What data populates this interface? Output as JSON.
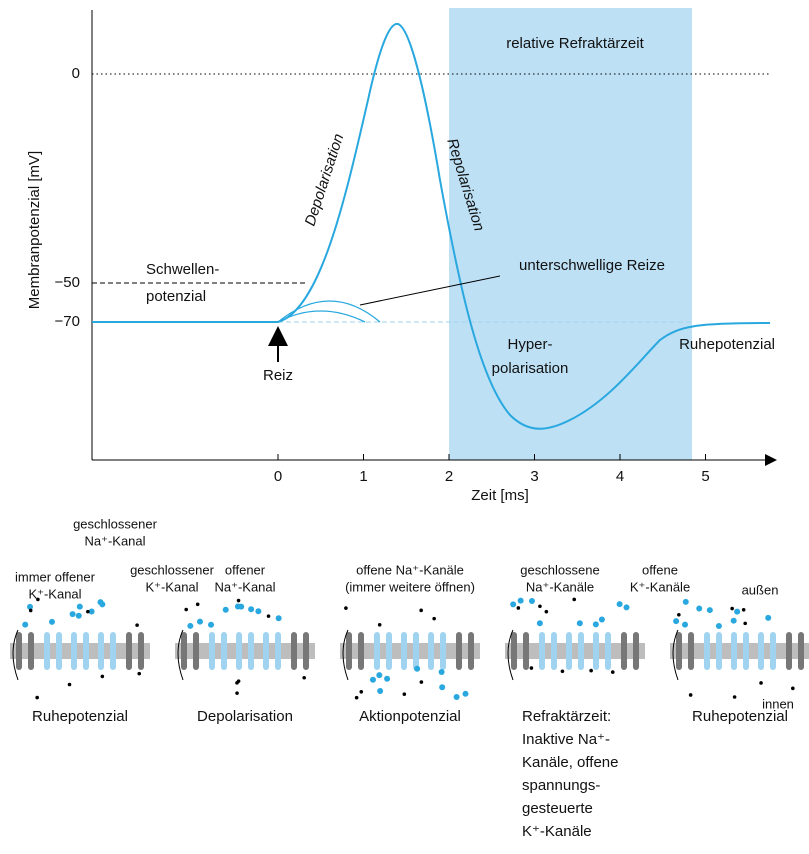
{
  "graph": {
    "y_axis_label": "Membranpotenzial [mV]",
    "x_axis_label": "Zeit [ms]",
    "y_ticks": [
      "0",
      "−50",
      "−70"
    ],
    "x_ticks": [
      "0",
      "1",
      "2",
      "3",
      "4",
      "5"
    ],
    "refractory_label": "relative Refraktärzeit",
    "depolarisation": "Depolarisation",
    "repolarisation": "Repolarisation",
    "threshold": [
      "Schwellen-",
      "potenzial"
    ],
    "subthreshold": "unterschwellige Reize",
    "stimulus": "Reiz",
    "hyperpolarisation": [
      "Hyper-",
      "polarisation"
    ],
    "resting": "Ruhepotenzial"
  },
  "channel_labels": [
    [
      "geschlossener",
      "Na⁺-Kanal"
    ],
    [
      "immer offener",
      "K⁺-Kanal"
    ],
    [
      "geschlossener",
      "K⁺-Kanal"
    ],
    [
      "offener",
      "Na⁺-Kanal"
    ],
    [
      "offene Na⁺-Kanäle",
      "(immer weitere öffnen)"
    ],
    [
      "geschlossene",
      "Na⁺-Kanäle"
    ],
    [
      "offene",
      "K⁺-Kanäle"
    ]
  ],
  "sides": {
    "outside": "außen",
    "inside": "innen"
  },
  "panels": [
    [
      "Ruhepotenzial"
    ],
    [
      "Depolarisation"
    ],
    [
      "Aktionpotenzial"
    ],
    [
      "Refraktärzeit:",
      "Inaktive Na⁺-",
      "Kanäle, offene",
      "spannungs-",
      "gesteuerte",
      "K⁺-Kanäle"
    ],
    [
      "Ruhepotenzial"
    ]
  ]
}
